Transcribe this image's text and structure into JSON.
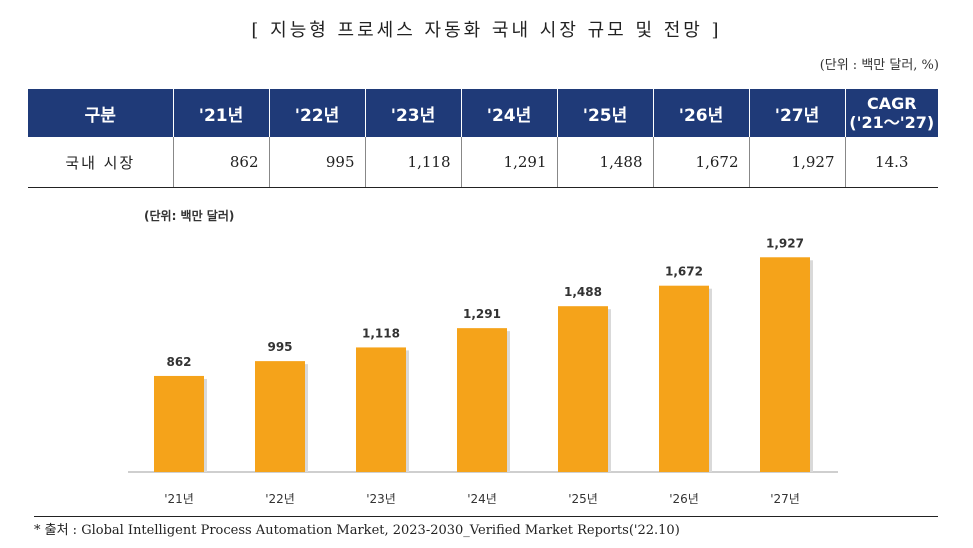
{
  "title": "[ 지능형 프로세스 자동화 국내 시장 규모 및 전망 ]",
  "unit_top": "(단위 : 백만 달러, %)",
  "table": {
    "headers": [
      "구분",
      "'21년",
      "'22년",
      "'23년",
      "'24년",
      "'25년",
      "'26년",
      "'27년"
    ],
    "cagr_header_line1": "CAGR",
    "cagr_header_line2": "('21～'27)",
    "row_label": "국내 시장",
    "row_values": [
      "862",
      "995",
      "1,118",
      "1,291",
      "1,488",
      "1,672",
      "1,927"
    ],
    "cagr_value": "14.3"
  },
  "chart_data": {
    "type": "bar",
    "title": "",
    "unit_label": "(단위: 백만 달러)",
    "categories": [
      "'21년",
      "'22년",
      "'23년",
      "'24년",
      "'25년",
      "'26년",
      "'27년"
    ],
    "values": [
      862,
      995,
      1118,
      1291,
      1488,
      1672,
      1927
    ],
    "value_labels": [
      "862",
      "995",
      "1,118",
      "1,291",
      "1,488",
      "1,672",
      "1,927"
    ],
    "bar_color": "#f5a31a",
    "xlabel": "",
    "ylabel": "",
    "ylim": [
      0,
      2100
    ],
    "grid": false,
    "legend": "none"
  },
  "source": "* 출처 : Global Intelligent Process Automation Market, 2023-2030_Verified Market Reports('22.10)"
}
